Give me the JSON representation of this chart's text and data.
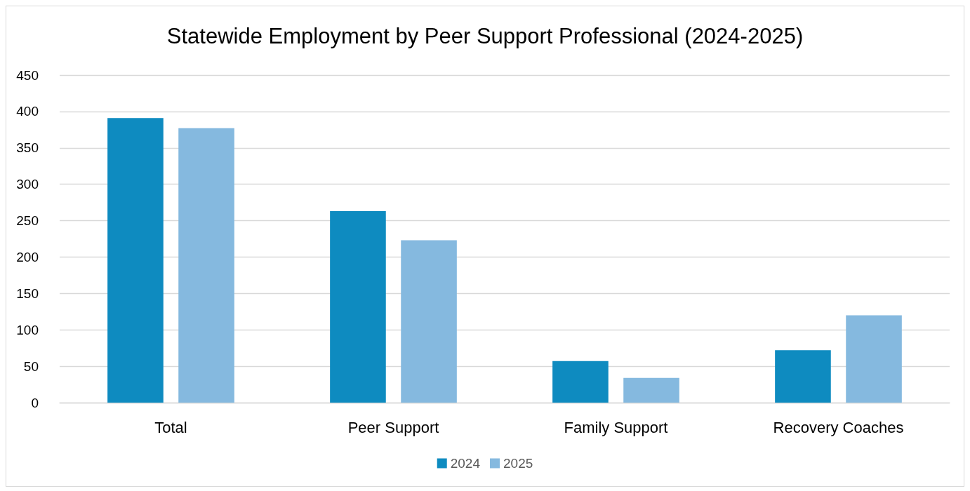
{
  "chart_data": {
    "type": "bar",
    "title": "Statewide Employment by Peer Support Professional (2024-2025)",
    "categories": [
      "Total",
      "Peer Support",
      "Family Support",
      "Recovery Coaches"
    ],
    "series": [
      {
        "name": "2024",
        "color": "#0e8bc0",
        "values": [
          391,
          263,
          57,
          72
        ]
      },
      {
        "name": "2025",
        "color": "#85b9df",
        "values": [
          377,
          223,
          34,
          120
        ]
      }
    ],
    "ylim": [
      0,
      450
    ],
    "yticks": [
      0,
      50,
      100,
      150,
      200,
      250,
      300,
      350,
      400,
      450
    ],
    "grid": "y",
    "legend": "bottom"
  }
}
